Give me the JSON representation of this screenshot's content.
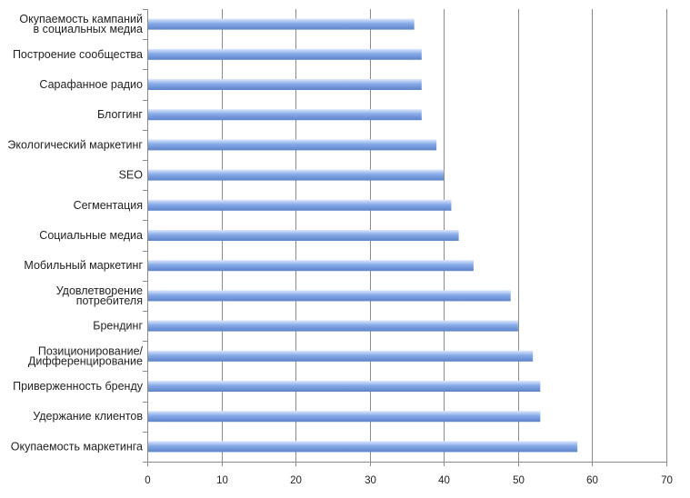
{
  "chart_data": {
    "type": "bar",
    "orientation": "horizontal",
    "categories": [
      "Окупаемость кампаний\nв социальных медиа",
      "Построение сообщества",
      "Сарафанное радио",
      "Блоггинг",
      "Экологический маркетинг",
      "SEO",
      "Сегментация",
      "Социальные медиа",
      "Мобильный маркетинг",
      "Удовлетворение\nпотребителя",
      "Брендинг",
      "Позиционирование/\nДифференцирование",
      "Приверженность бренду",
      "Удержание клиентов",
      "Окупаемость маркетинга"
    ],
    "values": [
      36,
      37,
      37,
      37,
      39,
      40,
      41,
      42,
      44,
      49,
      50,
      52,
      53,
      53,
      58
    ],
    "xlim": [
      0,
      70
    ],
    "xticks": [
      "0",
      "10",
      "20",
      "30",
      "40",
      "50",
      "60",
      "70"
    ],
    "grid": true,
    "legend": "none",
    "bar_color": "#86a9e8",
    "bar_highlight": "#dde8fb",
    "bar_shadow": "#5d83c9"
  }
}
